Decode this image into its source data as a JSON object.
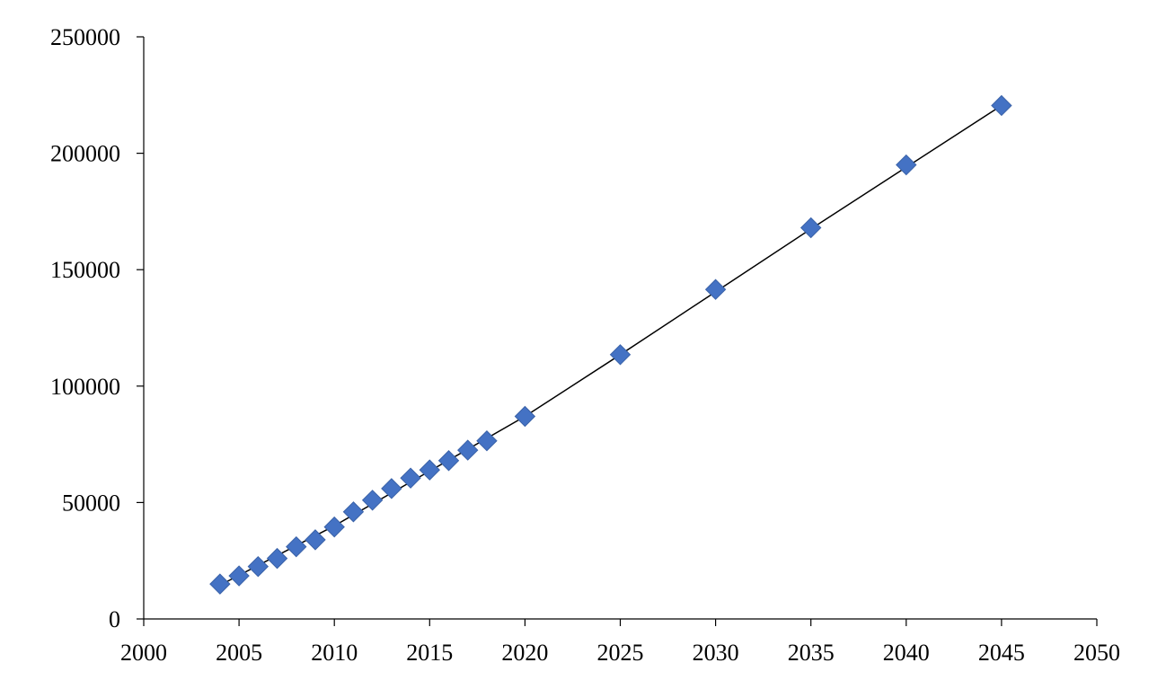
{
  "chart_data": {
    "type": "scatter",
    "title": "",
    "xlabel": "",
    "ylabel": "",
    "xlim": [
      2000,
      2050
    ],
    "ylim": [
      0,
      250000
    ],
    "x_ticks": [
      2000,
      2005,
      2010,
      2015,
      2020,
      2025,
      2030,
      2035,
      2040,
      2045,
      2050
    ],
    "y_ticks": [
      0,
      50000,
      100000,
      150000,
      200000,
      250000
    ],
    "x_tick_labels": [
      "2000",
      "2005",
      "2010",
      "2015",
      "2020",
      "2025",
      "2030",
      "2035",
      "2040",
      "2045",
      "2050"
    ],
    "y_tick_labels": [
      "0",
      "50000",
      "100000",
      "150000",
      "200000",
      "250000"
    ],
    "grid": false,
    "legend": "none",
    "marker": "diamond",
    "series": [
      {
        "color": "#4472C4",
        "points": [
          {
            "x": 2004,
            "y": 15000
          },
          {
            "x": 2005,
            "y": 18500
          },
          {
            "x": 2006,
            "y": 22500
          },
          {
            "x": 2007,
            "y": 26000
          },
          {
            "x": 2008,
            "y": 31000
          },
          {
            "x": 2009,
            "y": 34000
          },
          {
            "x": 2010,
            "y": 39500
          },
          {
            "x": 2011,
            "y": 46000
          },
          {
            "x": 2012,
            "y": 51000
          },
          {
            "x": 2013,
            "y": 56000
          },
          {
            "x": 2014,
            "y": 60500
          },
          {
            "x": 2015,
            "y": 64000
          },
          {
            "x": 2016,
            "y": 68000
          },
          {
            "x": 2017,
            "y": 72500
          },
          {
            "x": 2018,
            "y": 76500
          },
          {
            "x": 2020,
            "y": 87000
          },
          {
            "x": 2025,
            "y": 113500
          },
          {
            "x": 2030,
            "y": 141500
          },
          {
            "x": 2035,
            "y": 168000
          },
          {
            "x": 2040,
            "y": 195000
          },
          {
            "x": 2045,
            "y": 220500
          }
        ]
      }
    ],
    "trendline": {
      "color": "#000000",
      "points": [
        {
          "x": 2004,
          "y": 14500
        },
        {
          "x": 2010,
          "y": 40000
        },
        {
          "x": 2015,
          "y": 63500
        },
        {
          "x": 2020,
          "y": 87000
        },
        {
          "x": 2025,
          "y": 113500
        },
        {
          "x": 2030,
          "y": 140500
        },
        {
          "x": 2035,
          "y": 167500
        },
        {
          "x": 2040,
          "y": 194000
        },
        {
          "x": 2045,
          "y": 220500
        }
      ]
    }
  }
}
